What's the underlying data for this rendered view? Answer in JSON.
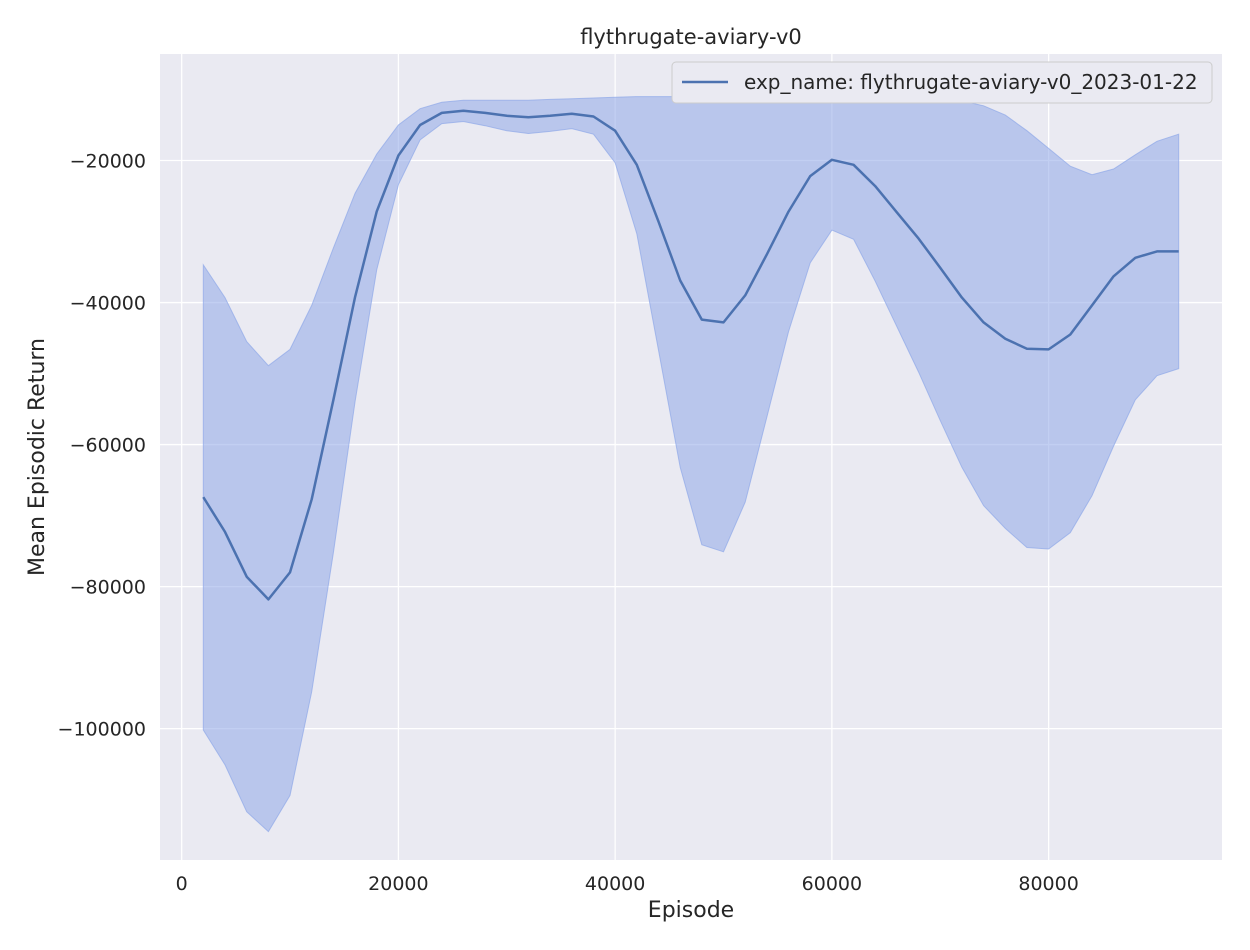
{
  "chart_data": {
    "type": "line",
    "title": "flythrugate-aviary-v0",
    "xlabel": "Episode",
    "ylabel": "Mean Episodic Return",
    "xlim": [
      -2000,
      96000
    ],
    "ylim": [
      -118500,
      -5000
    ],
    "xticks": [
      0,
      20000,
      40000,
      60000,
      80000
    ],
    "xtick_labels": [
      "0",
      "20000",
      "40000",
      "60000",
      "80000"
    ],
    "yticks": [
      -20000,
      -40000,
      -60000,
      -80000,
      -100000
    ],
    "ytick_labels": [
      "−20000",
      "−40000",
      "−60000",
      "−80000",
      "−100000"
    ],
    "grid": true,
    "legend_position": "top-right",
    "colors": {
      "background": "#eaeaf2",
      "grid": "#ffffff",
      "line": "#4c72b0",
      "band": "#8fa8e8"
    },
    "series": [
      {
        "name": "exp_name: flythrugate-aviary-v0_2023-01-22",
        "x": [
          2000,
          4000,
          6000,
          8000,
          10000,
          12000,
          14000,
          16000,
          18000,
          20000,
          22000,
          24000,
          26000,
          28000,
          30000,
          32000,
          34000,
          36000,
          38000,
          40000,
          42000,
          44000,
          46000,
          48000,
          50000,
          52000,
          54000,
          56000,
          58000,
          60000,
          62000,
          64000,
          66000,
          68000,
          70000,
          72000,
          74000,
          76000,
          78000,
          80000,
          82000,
          84000,
          86000,
          88000,
          90000,
          92000
        ],
        "y": [
          -67400,
          -72300,
          -78600,
          -81800,
          -78000,
          -67700,
          -53700,
          -39200,
          -27200,
          -19300,
          -15000,
          -13300,
          -13000,
          -13300,
          -13700,
          -13900,
          -13700,
          -13400,
          -13800,
          -15800,
          -20600,
          -28600,
          -36900,
          -42400,
          -42800,
          -39000,
          -33200,
          -27200,
          -22200,
          -19900,
          -20600,
          -23600,
          -27300,
          -31000,
          -35100,
          -39300,
          -42800,
          -45100,
          -46500,
          -46600,
          -44500,
          -40400,
          -36300,
          -33700,
          -32800,
          -32800
        ],
        "y_lower": [
          -100200,
          -105100,
          -111700,
          -114500,
          -109400,
          -94800,
          -75200,
          -53900,
          -35400,
          -23400,
          -17100,
          -14800,
          -14500,
          -15100,
          -15800,
          -16200,
          -15900,
          -15500,
          -16300,
          -20300,
          -30300,
          -46700,
          -63200,
          -74100,
          -75100,
          -68100,
          -56100,
          -44100,
          -34400,
          -29800,
          -31100,
          -37000,
          -43400,
          -49800,
          -56600,
          -63200,
          -68600,
          -71800,
          -74500,
          -74700,
          -72400,
          -67200,
          -60200,
          -53700,
          -50300,
          -49300
        ],
        "y_upper": [
          -34700,
          -39300,
          -45500,
          -48900,
          -46600,
          -40400,
          -32300,
          -24600,
          -19100,
          -15000,
          -12700,
          -11800,
          -11500,
          -11500,
          -11500,
          -11500,
          -11400,
          -11300,
          -11200,
          -11100,
          -11000,
          -11000,
          -11000,
          -11000,
          -10900,
          -10900,
          -10900,
          -10900,
          -10900,
          -10900,
          -10900,
          -11000,
          -11100,
          -11200,
          -11300,
          -11600,
          -12300,
          -13600,
          -15800,
          -18300,
          -20800,
          -22000,
          -21200,
          -19200,
          -17300,
          -16300
        ]
      }
    ]
  }
}
